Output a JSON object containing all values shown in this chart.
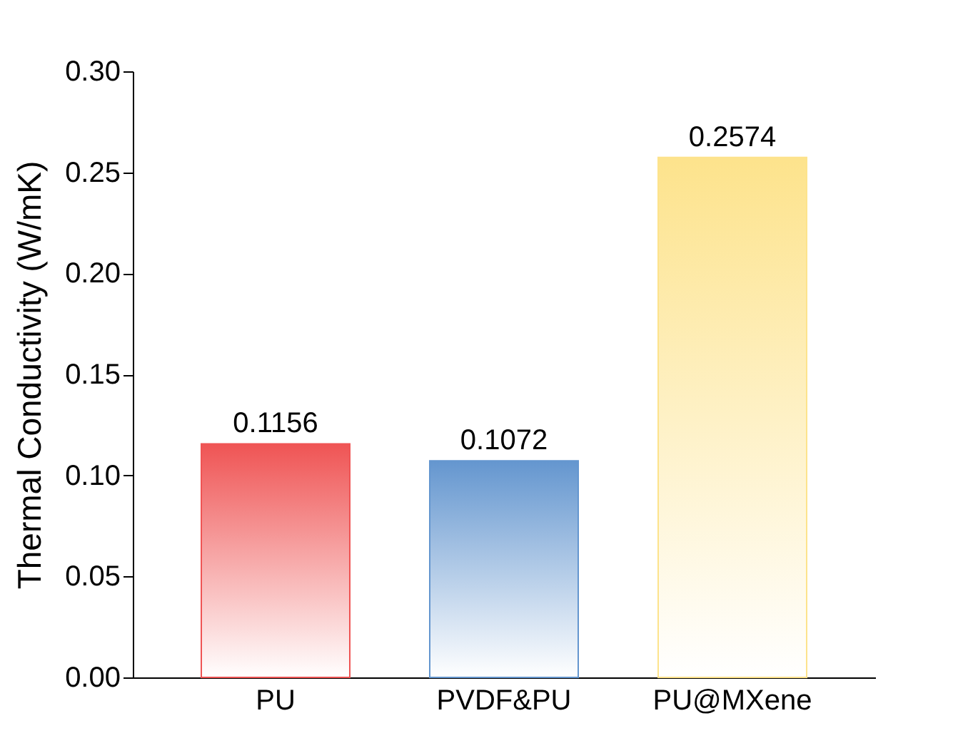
{
  "chart_data": {
    "type": "bar",
    "ylabel": "Thermal Conductivity (W/mK)",
    "categories": [
      "PU",
      "PVDF&PU",
      "PU@MXene"
    ],
    "values": [
      0.1156,
      0.1072,
      0.2574
    ],
    "colors": [
      "#ef5454",
      "#6496cf",
      "#fde38c"
    ],
    "ylim": [
      0,
      0.3
    ],
    "yticks": [
      {
        "value": 0,
        "label": "0.00"
      },
      0.05,
      {
        "value": 0.1,
        "label": "0.10"
      },
      0.15,
      {
        "value": 0.2,
        "label": "0.20"
      },
      0.25,
      {
        "value": 0.3,
        "label": "0.30"
      }
    ],
    "data_labels": true
  }
}
